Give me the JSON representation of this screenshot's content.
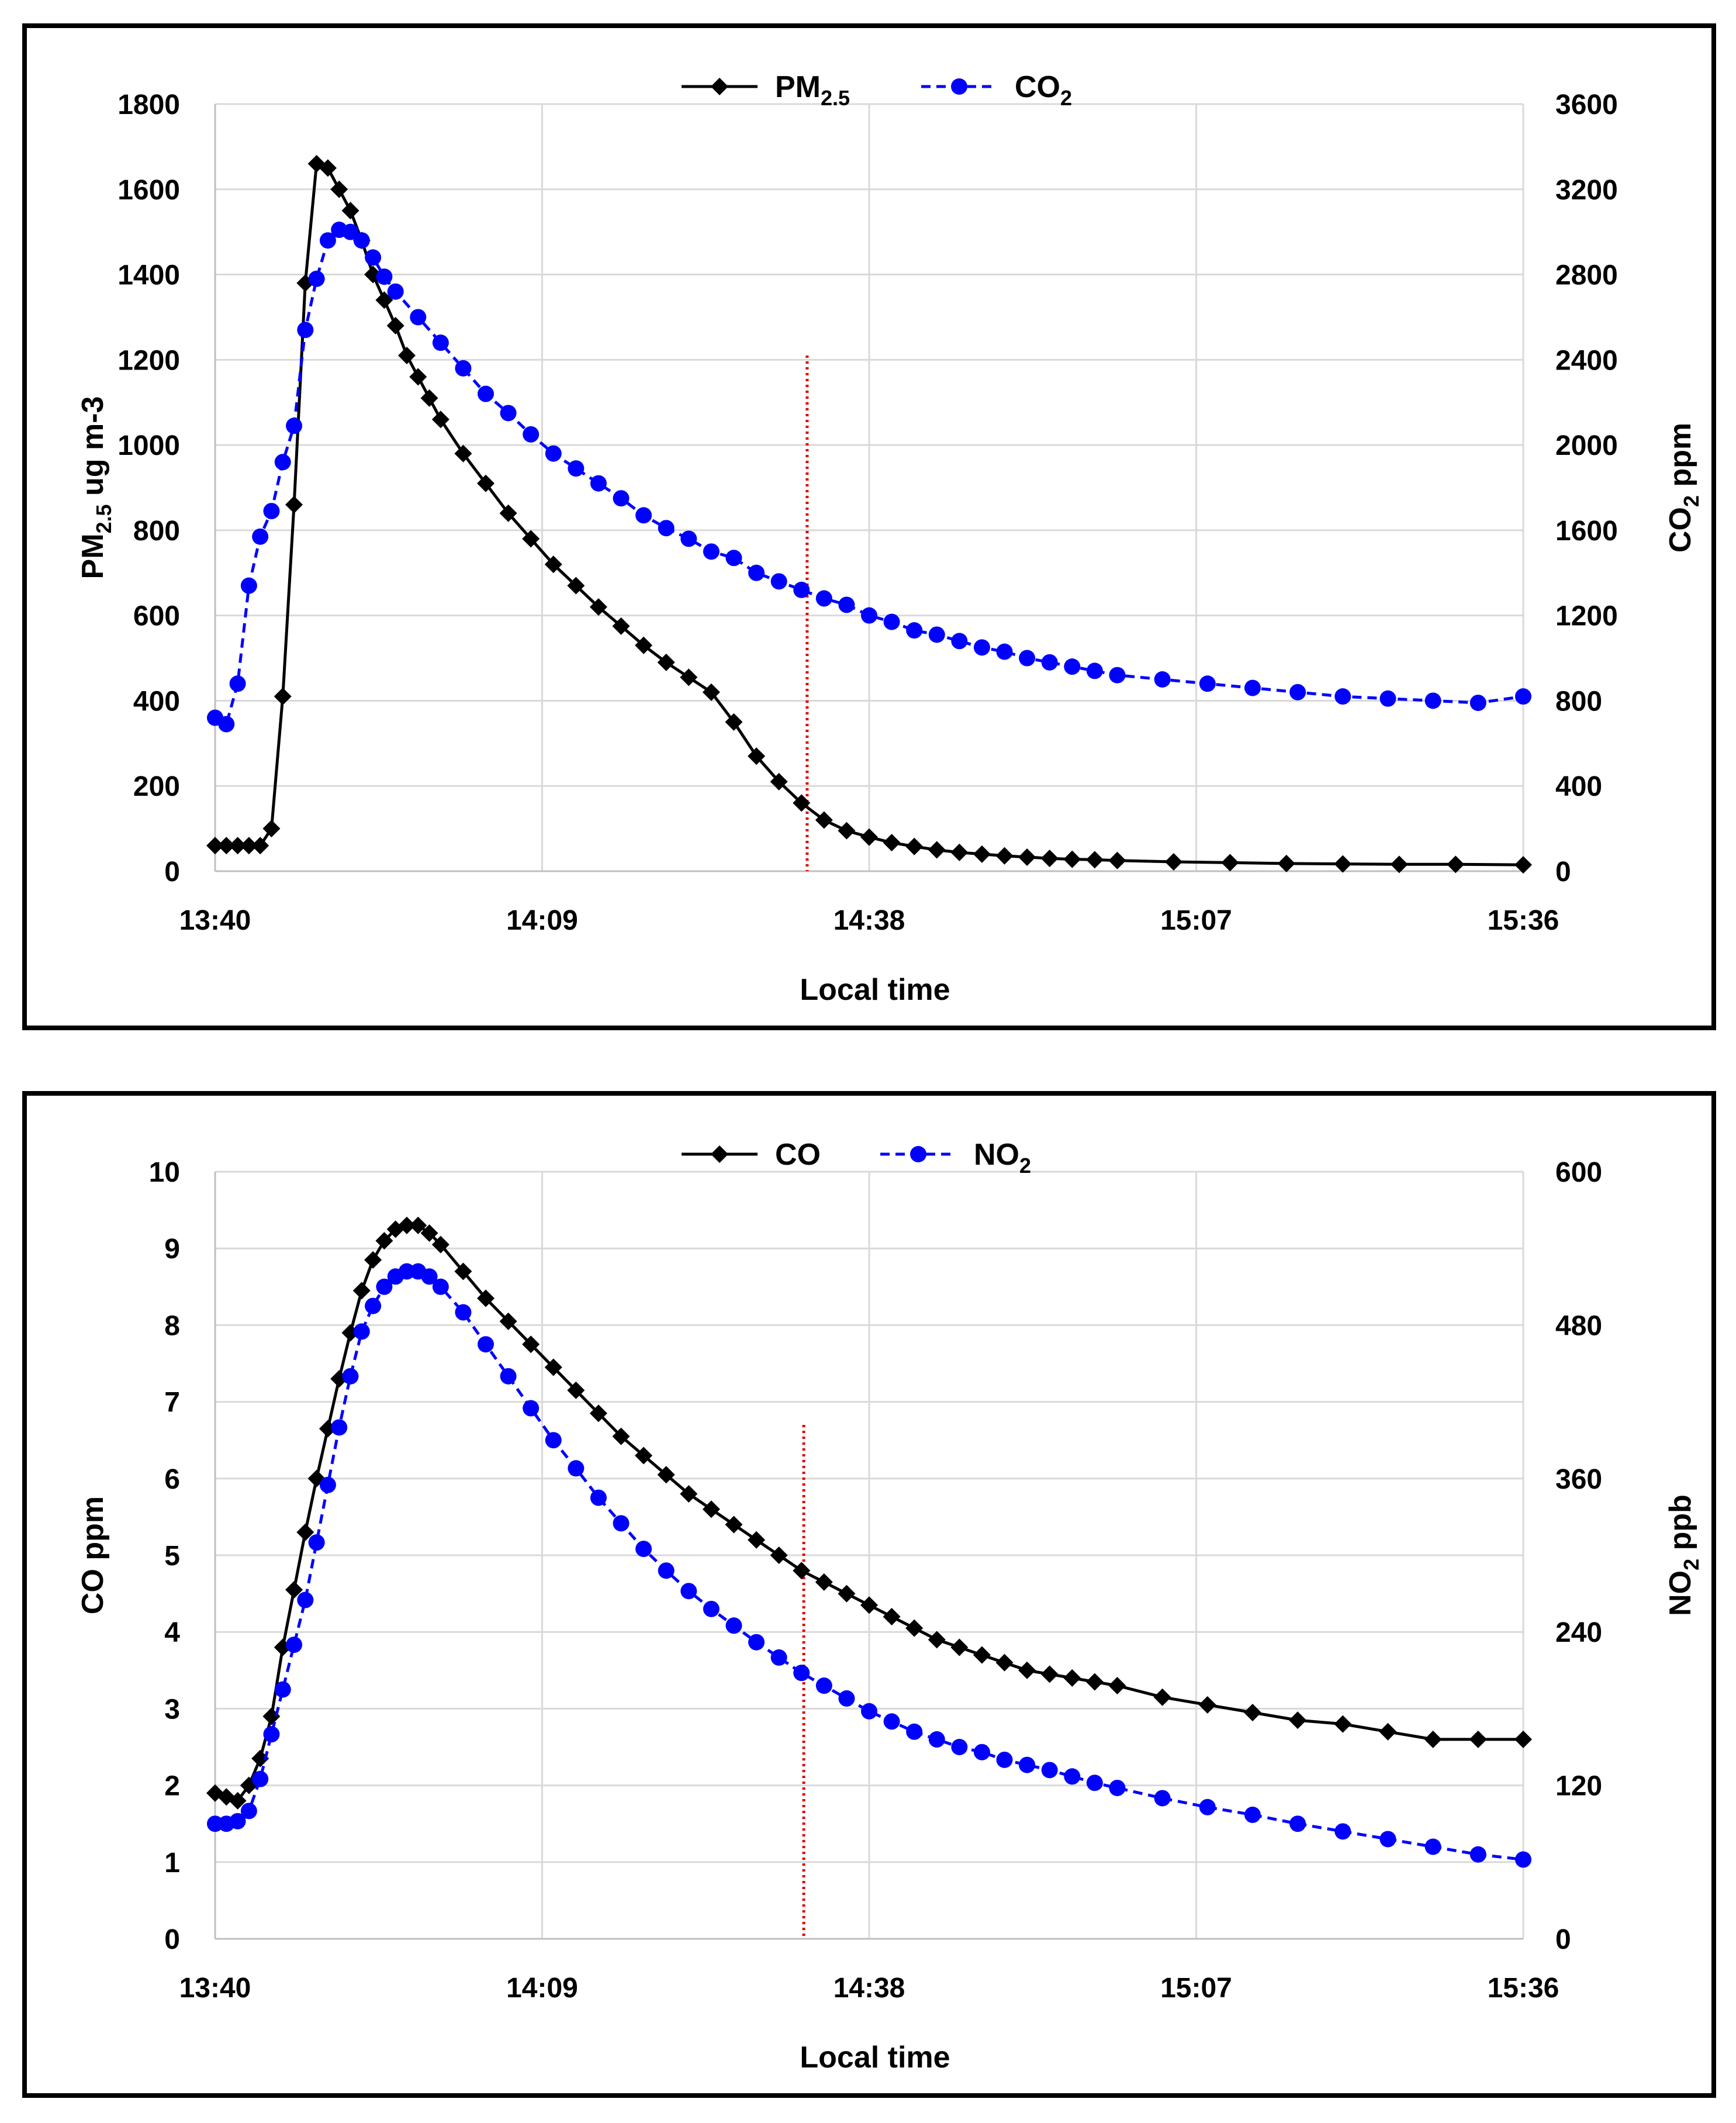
{
  "chart_data": [
    {
      "id": "top",
      "type": "line",
      "xlabel": "Local time",
      "ylabel_left": {
        "base": "PM",
        "sub": "2.5",
        "rest": " ug m-3"
      },
      "ylabel_right": {
        "base": "CO",
        "sub": "2",
        "rest": " ppm"
      },
      "x_ticks": [
        "13:40",
        "14:09",
        "14:38",
        "15:07",
        "15:36"
      ],
      "x_range_minutes": [
        0,
        116
      ],
      "yl_range": [
        0,
        1800
      ],
      "yl_ticks": [
        0,
        200,
        400,
        600,
        800,
        1000,
        1200,
        1400,
        1600,
        1800
      ],
      "yr_range": [
        0,
        3600
      ],
      "yr_ticks": [
        0,
        400,
        800,
        1200,
        1600,
        2000,
        2400,
        2800,
        3200,
        3600
      ],
      "grid": true,
      "legend_position": "top-center",
      "marker_line_minute": 52.5,
      "marker_line_top_value": 1210,
      "series": [
        {
          "name": "PM",
          "name_sub": "2.5",
          "axis": "left",
          "color": "#000000",
          "style": "solid",
          "marker": "diamond",
          "x": [
            0,
            1,
            2,
            3,
            4,
            5,
            6,
            7,
            8,
            9,
            10,
            11,
            12,
            13,
            14,
            15,
            16,
            17,
            18,
            19,
            20,
            22,
            24,
            26,
            28,
            30,
            32,
            34,
            36,
            38,
            40,
            42,
            44,
            46,
            48,
            50,
            52,
            54,
            56,
            58,
            60,
            62,
            64,
            66,
            68,
            70,
            72,
            74,
            76,
            78,
            80,
            85,
            90,
            95,
            100,
            105,
            110,
            116
          ],
          "values": [
            60,
            60,
            60,
            60,
            60,
            100,
            410,
            860,
            1380,
            1660,
            1650,
            1600,
            1550,
            1480,
            1400,
            1340,
            1280,
            1210,
            1160,
            1110,
            1060,
            980,
            910,
            840,
            780,
            720,
            670,
            620,
            575,
            530,
            490,
            455,
            420,
            350,
            270,
            210,
            160,
            120,
            95,
            80,
            67,
            58,
            50,
            44,
            40,
            36,
            33,
            30,
            28,
            27,
            25,
            22,
            20,
            18,
            17,
            16,
            16,
            15
          ]
        },
        {
          "name": "CO",
          "name_sub": "2",
          "axis": "right",
          "color": "#0000ff",
          "style": "dashed",
          "marker": "circle",
          "x": [
            0,
            1,
            2,
            3,
            4,
            5,
            6,
            7,
            8,
            9,
            10,
            11,
            12,
            13,
            14,
            15,
            16,
            18,
            20,
            22,
            24,
            26,
            28,
            30,
            32,
            34,
            36,
            38,
            40,
            42,
            44,
            46,
            48,
            50,
            52,
            54,
            56,
            58,
            60,
            62,
            64,
            66,
            68,
            70,
            72,
            74,
            76,
            78,
            80,
            84,
            88,
            92,
            96,
            100,
            104,
            108,
            112,
            116
          ],
          "values": [
            720,
            690,
            880,
            1340,
            1570,
            1690,
            1920,
            2090,
            2540,
            2780,
            2960,
            3010,
            3000,
            2960,
            2880,
            2790,
            2720,
            2600,
            2480,
            2360,
            2240,
            2150,
            2050,
            1960,
            1890,
            1820,
            1750,
            1670,
            1610,
            1560,
            1500,
            1470,
            1400,
            1360,
            1320,
            1280,
            1250,
            1200,
            1170,
            1130,
            1110,
            1080,
            1050,
            1030,
            1000,
            980,
            960,
            940,
            920,
            900,
            880,
            860,
            840,
            820,
            810,
            800,
            790,
            820
          ]
        }
      ]
    },
    {
      "id": "bottom",
      "type": "line",
      "xlabel": "Local time",
      "ylabel_left": {
        "base": "CO ppm",
        "sub": "",
        "rest": ""
      },
      "ylabel_right": {
        "base": "NO",
        "sub": "2",
        "rest": " ppb"
      },
      "x_ticks": [
        "13:40",
        "14:09",
        "14:38",
        "15:07",
        "15:36"
      ],
      "x_range_minutes": [
        0,
        116
      ],
      "yl_range": [
        0,
        10
      ],
      "yl_ticks": [
        0,
        1,
        2,
        3,
        4,
        5,
        6,
        7,
        8,
        9,
        10
      ],
      "yr_range": [
        0,
        600
      ],
      "yr_ticks": [
        0,
        120,
        240,
        360,
        480,
        600
      ],
      "grid": true,
      "legend_position": "top-center",
      "marker_line_minute": 52.2,
      "marker_line_top_value": 6.7,
      "series": [
        {
          "name": "CO",
          "name_sub": "",
          "axis": "left",
          "color": "#000000",
          "style": "solid",
          "marker": "diamond",
          "x": [
            0,
            1,
            2,
            3,
            4,
            5,
            6,
            7,
            8,
            9,
            10,
            11,
            12,
            13,
            14,
            15,
            16,
            17,
            18,
            19,
            20,
            22,
            24,
            26,
            28,
            30,
            32,
            34,
            36,
            38,
            40,
            42,
            44,
            46,
            48,
            50,
            52,
            54,
            56,
            58,
            60,
            62,
            64,
            66,
            68,
            70,
            72,
            74,
            76,
            78,
            80,
            84,
            88,
            92,
            96,
            100,
            104,
            108,
            112,
            116
          ],
          "values": [
            1.9,
            1.85,
            1.8,
            2.0,
            2.35,
            2.9,
            3.8,
            4.55,
            5.3,
            6.0,
            6.65,
            7.3,
            7.9,
            8.45,
            8.85,
            9.1,
            9.25,
            9.3,
            9.3,
            9.2,
            9.05,
            8.7,
            8.35,
            8.05,
            7.75,
            7.45,
            7.15,
            6.85,
            6.55,
            6.3,
            6.05,
            5.8,
            5.6,
            5.4,
            5.2,
            5.0,
            4.8,
            4.65,
            4.5,
            4.35,
            4.2,
            4.05,
            3.9,
            3.8,
            3.7,
            3.6,
            3.5,
            3.45,
            3.4,
            3.35,
            3.3,
            3.15,
            3.05,
            2.95,
            2.85,
            2.8,
            2.7,
            2.6,
            2.6,
            2.6
          ]
        },
        {
          "name": "NO",
          "name_sub": "2",
          "axis": "right",
          "color": "#0000ff",
          "style": "dashed",
          "marker": "circle",
          "x": [
            0,
            1,
            2,
            3,
            4,
            5,
            6,
            7,
            8,
            9,
            10,
            11,
            12,
            13,
            14,
            15,
            16,
            17,
            18,
            19,
            20,
            22,
            24,
            26,
            28,
            30,
            32,
            34,
            36,
            38,
            40,
            42,
            44,
            46,
            48,
            50,
            52,
            54,
            56,
            58,
            60,
            62,
            64,
            66,
            68,
            70,
            72,
            74,
            76,
            78,
            80,
            84,
            88,
            92,
            96,
            100,
            104,
            108,
            112,
            116
          ],
          "values": [
            90,
            90,
            92,
            100,
            125,
            160,
            195,
            230,
            265,
            310,
            355,
            400,
            440,
            475,
            495,
            510,
            518,
            522,
            522,
            518,
            510,
            490,
            465,
            440,
            415,
            390,
            368,
            345,
            325,
            305,
            288,
            272,
            258,
            245,
            232,
            220,
            208,
            198,
            188,
            178,
            170,
            162,
            156,
            150,
            146,
            140,
            136,
            132,
            127,
            122,
            118,
            110,
            103,
            97,
            90,
            84,
            78,
            72,
            66,
            62
          ]
        }
      ]
    }
  ]
}
